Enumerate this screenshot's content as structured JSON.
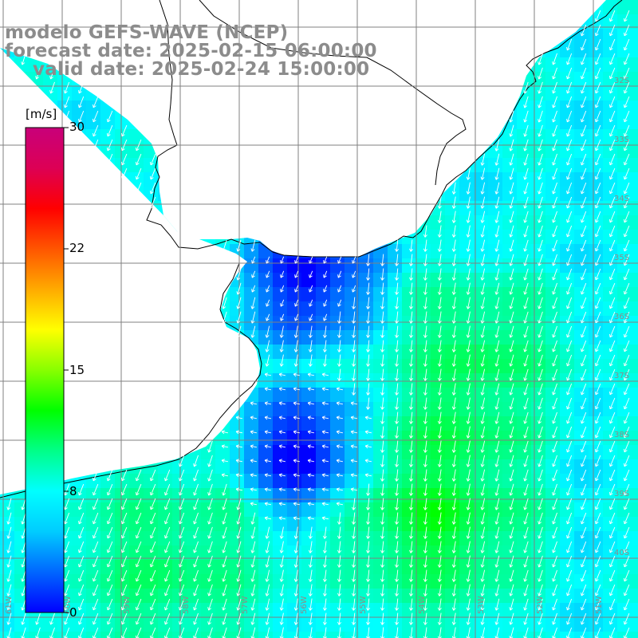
{
  "title": {
    "model": "modelo GEFS-WAVE (NCEP)",
    "forecast": "forecast date: 2025-02-15 06:00:00",
    "valid": "valid date: 2025-02-24 15:00:00"
  },
  "colorbar": {
    "units": "[m/s]",
    "min": 0,
    "max": 30,
    "ticks": [
      "30",
      "22",
      "15",
      "8",
      "0"
    ],
    "colors": [
      "#0000ff",
      "#0066ff",
      "#00ccff",
      "#00ffff",
      "#00ff88",
      "#00ff00",
      "#88ff00",
      "#ffff00",
      "#ffaa00",
      "#ff5500",
      "#ff0000",
      "#dd0055",
      "#c8007a"
    ]
  },
  "lat_labels": [
    "32S",
    "33S",
    "34S",
    "35S",
    "36S",
    "37S",
    "38S",
    "39S",
    "40S"
  ],
  "lon_labels": [
    "61W",
    "60W",
    "59W",
    "58W",
    "57W",
    "56W",
    "55W",
    "54W",
    "53W",
    "52W",
    "51W"
  ],
  "map": {
    "land_color": "#ffffff",
    "grid_color": "#808080",
    "coast_color": "#000000",
    "arrow_color": "#ffffff",
    "legend_colors": {
      "low": "#0000ff",
      "mid": "#00ffff",
      "high": "#00ff00"
    }
  }
}
